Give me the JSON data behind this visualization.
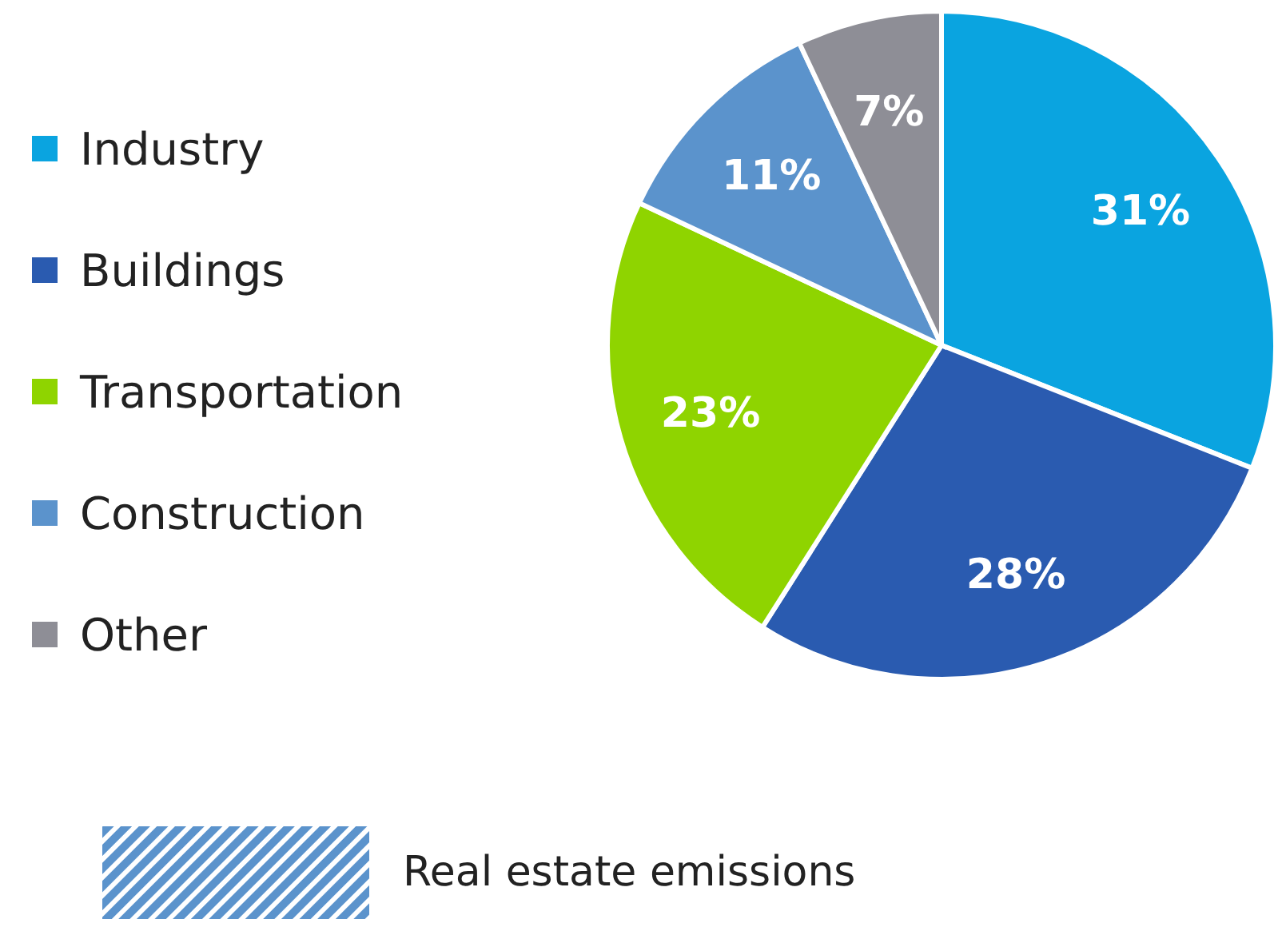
{
  "chart_data": {
    "type": "pie",
    "categories": [
      "Industry",
      "Buildings",
      "Transportation",
      "Construction",
      "Other"
    ],
    "values": [
      31,
      28,
      23,
      11,
      7
    ],
    "colors": [
      "#0aa4e0",
      "#2a5bb0",
      "#8fd400",
      "#5b93cc",
      "#8e8e96"
    ],
    "value_labels": [
      "31%",
      "28%",
      "23%",
      "11%",
      "7%"
    ],
    "legend": "left",
    "annotations": [
      "Real estate emissions"
    ]
  }
}
